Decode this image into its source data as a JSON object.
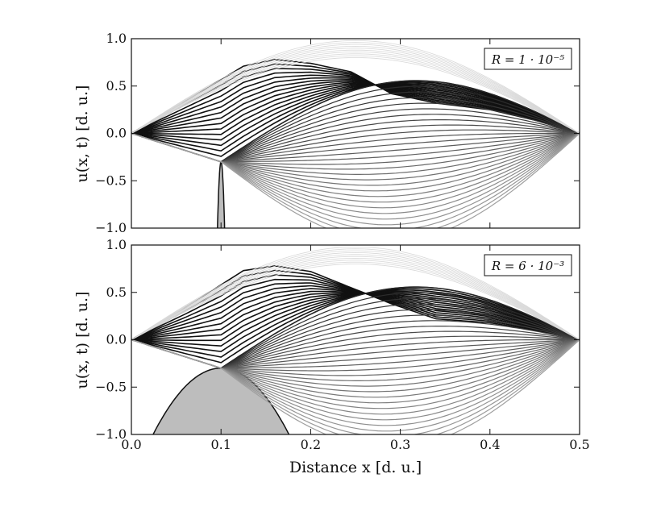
{
  "chart_data": [
    {
      "type": "line",
      "panel": "top",
      "legend": "R = 1 · 10⁻⁵",
      "legend_placement": "top-right",
      "xlabel": "",
      "ylabel": "u(x, t) [d. u.]",
      "xlim": [
        0.0,
        0.5
      ],
      "ylim": [
        -1.0,
        1.0
      ],
      "x_ticks": [
        "0.0",
        "0.1",
        "0.2",
        "0.3",
        "0.4",
        "0.5"
      ],
      "y_ticks": [
        "−1.0",
        "−0.5",
        "0.0",
        "0.5",
        "1.0"
      ],
      "obstacle": {
        "x_center": 0.1,
        "top_y": -0.3,
        "half_width": 0.005
      },
      "initial_profile": {
        "x": [
          0.0,
          0.06,
          0.125,
          0.16,
          0.2,
          0.245,
          0.29,
          0.34,
          0.4,
          0.45,
          0.5
        ],
        "y": [
          0.0,
          0.34,
          0.71,
          0.78,
          0.74,
          0.65,
          0.42,
          0.32,
          0.25,
          0.14,
          0.0
        ]
      },
      "contact_point": {
        "x": 0.1,
        "y": -0.3
      },
      "final_profile_min": -0.99,
      "n_curves": 45
    },
    {
      "type": "line",
      "panel": "bottom",
      "legend": "R = 6 · 10⁻³",
      "legend_placement": "top-right",
      "xlabel": "Distance x [d. u.]",
      "ylabel": "u(x, t) [d. u.]",
      "xlim": [
        0.0,
        0.5
      ],
      "ylim": [
        -1.0,
        1.0
      ],
      "x_ticks": [
        "0.0",
        "0.1",
        "0.2",
        "0.3",
        "0.4",
        "0.5"
      ],
      "y_ticks": [
        "−1.0",
        "−0.5",
        "0.0",
        "0.5",
        "1.0"
      ],
      "obstacle": {
        "x_center": 0.1,
        "top_y": -0.3,
        "half_width": 0.095
      },
      "initial_profile": {
        "x": [
          0.0,
          0.06,
          0.125,
          0.16,
          0.2,
          0.245,
          0.29,
          0.34,
          0.4,
          0.45,
          0.5
        ],
        "y": [
          0.0,
          0.34,
          0.73,
          0.78,
          0.72,
          0.55,
          0.38,
          0.22,
          0.18,
          0.1,
          0.0
        ]
      },
      "contact_point": {
        "x": 0.1,
        "y": -0.3
      },
      "final_profile_min": -0.99,
      "n_curves": 45
    }
  ]
}
